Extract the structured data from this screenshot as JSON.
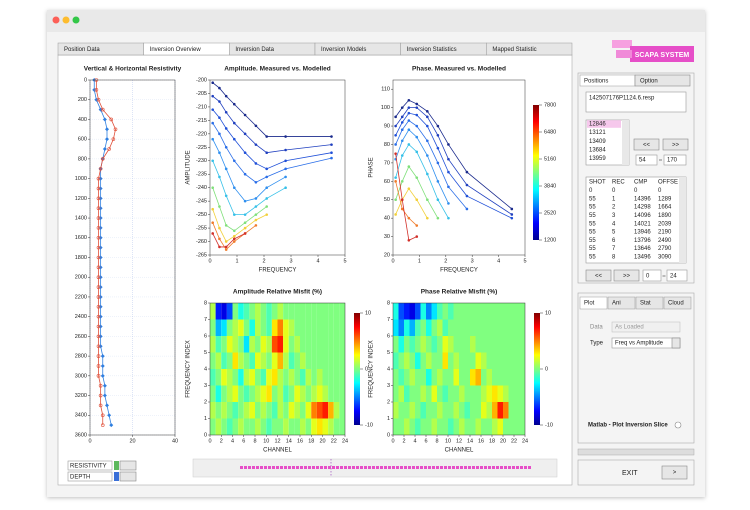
{
  "window": {
    "tabs": [
      "Position Data",
      "Inversion Overview",
      "Inversion Data",
      "Inversion Models",
      "Inversion Statistics",
      "Mapped Statistic"
    ]
  },
  "charts": [
    {
      "type": "profile",
      "title": "Vertical & Horizontal Resistivity",
      "grid": true,
      "y_inverted": true,
      "xlim": [
        0,
        40
      ],
      "ylim": [
        0,
        3600
      ],
      "xticks": [
        0,
        20,
        40
      ],
      "yticks": [
        0,
        200,
        400,
        600,
        800,
        1000,
        1200,
        1400,
        1600,
        1800,
        2000,
        2200,
        2400,
        2600,
        2800,
        3000,
        3200,
        3400,
        3600
      ],
      "y": [
        0,
        100,
        200,
        300,
        400,
        500,
        600,
        700,
        800,
        900,
        1000,
        1100,
        1200,
        1300,
        1400,
        1500,
        1600,
        1700,
        1800,
        1900,
        2000,
        2100,
        2200,
        2300,
        2400,
        2500,
        2600,
        2700,
        2800,
        2900,
        3000,
        3100,
        3200,
        3300,
        3400,
        3500
      ],
      "series": [
        {
          "color": "#2f7fe0",
          "values": [
            2,
            2,
            3,
            5,
            7,
            8,
            8,
            7,
            6,
            5,
            5,
            5,
            5,
            5,
            5,
            5,
            5,
            5,
            5,
            5,
            5,
            5,
            5,
            5,
            5,
            5,
            5,
            5,
            6,
            6,
            6,
            7,
            7,
            8,
            9,
            10
          ]
        },
        {
          "color": "#e0503a",
          "values": [
            3,
            3,
            4,
            6,
            10,
            12,
            11,
            9,
            6,
            5,
            4,
            4,
            4,
            4,
            4,
            4,
            4,
            4,
            4,
            4,
            4,
            4,
            4,
            4,
            4,
            4,
            4,
            4,
            4,
            4,
            4,
            5,
            5,
            5,
            6,
            6
          ]
        }
      ]
    },
    {
      "type": "line",
      "title": "Amplitude. Measured vs. Modelled",
      "x_label": "FREQUENCY",
      "y_label": "AMPLITUDE",
      "grid": false,
      "xlim": [
        0,
        5
      ],
      "ylim": [
        -265,
        -200
      ],
      "xticks": [
        0,
        1,
        2,
        3,
        4,
        5
      ],
      "yticks": [
        -265,
        -260,
        -255,
        -250,
        -245,
        -240,
        -235,
        -230,
        -225,
        -220,
        -215,
        -210,
        -205,
        -200
      ],
      "x": [
        0.1,
        0.35,
        0.6,
        0.9,
        1.3,
        1.7,
        2.1,
        2.8,
        4.5
      ],
      "series": [
        {
          "color": "#1a2a8c",
          "values": [
            -201,
            -203,
            -206,
            -209,
            -213,
            -217,
            -221,
            -221,
            -221
          ]
        },
        {
          "color": "#1f3fbf",
          "values": [
            -206,
            -208,
            -212,
            -216,
            -220,
            -224,
            -227,
            -226,
            -224
          ]
        },
        {
          "color": "#2050d8",
          "values": [
            -211,
            -214,
            -218,
            -222,
            -227,
            -231,
            -233,
            -230,
            -227
          ]
        },
        {
          "color": "#2a6ee8",
          "values": [
            -216,
            -220,
            -225,
            -230,
            -235,
            -238,
            -236,
            -233,
            -229
          ]
        },
        {
          "color": "#2f8fef",
          "values": [
            -222,
            -227,
            -233,
            -240,
            -245,
            -244,
            -240,
            -236,
            null
          ]
        },
        {
          "color": "#35c0e8",
          "values": [
            -230,
            -236,
            -243,
            -250,
            -250,
            -247,
            -244,
            -240,
            null
          ]
        },
        {
          "color": "#7fe07a",
          "values": [
            -240,
            -247,
            -254,
            -256,
            -253,
            -250,
            -247,
            null,
            null
          ]
        },
        {
          "color": "#f2d03a",
          "values": [
            -248,
            -255,
            -260,
            -258,
            -255,
            -252,
            -250,
            null,
            null
          ]
        },
        {
          "color": "#f07b2a",
          "values": [
            -253,
            -259,
            -263,
            -260,
            -257,
            -254,
            null,
            null,
            null
          ]
        },
        {
          "color": "#d2302a",
          "values": [
            -257,
            -262,
            -262,
            -259,
            -257,
            null,
            null,
            null,
            null
          ]
        }
      ]
    },
    {
      "type": "line",
      "title": "Phase. Measured vs. Modelled",
      "x_label": "FREQUENCY",
      "y_label": "PHASE",
      "grid": false,
      "xlim": [
        0,
        5
      ],
      "ylim": [
        20,
        115
      ],
      "xticks": [
        0,
        1,
        2,
        3,
        4,
        5
      ],
      "yticks": [
        20,
        30,
        40,
        50,
        60,
        70,
        80,
        90,
        100,
        110
      ],
      "colorbar": {
        "lim": [
          1200,
          7800
        ],
        "ticks": [
          1200,
          2520,
          3840,
          5160,
          6480,
          7800
        ]
      },
      "x": [
        0.1,
        0.35,
        0.6,
        0.9,
        1.3,
        1.7,
        2.1,
        2.8,
        4.5
      ],
      "series": [
        {
          "color": "#1a2a8c",
          "values": [
            95,
            100,
            104,
            102,
            98,
            90,
            80,
            65,
            45
          ]
        },
        {
          "color": "#1f3fbf",
          "values": [
            90,
            95,
            100,
            100,
            95,
            85,
            72,
            58,
            42
          ]
        },
        {
          "color": "#2050d8",
          "values": [
            85,
            92,
            97,
            96,
            90,
            78,
            65,
            52,
            40
          ]
        },
        {
          "color": "#2a6ee8",
          "values": [
            80,
            88,
            93,
            90,
            82,
            70,
            57,
            45,
            null
          ]
        },
        {
          "color": "#2f8fef",
          "values": [
            72,
            82,
            88,
            84,
            74,
            60,
            48,
            null,
            null
          ]
        },
        {
          "color": "#35c0e8",
          "values": [
            62,
            74,
            80,
            76,
            64,
            50,
            40,
            null,
            null
          ]
        },
        {
          "color": "#7fe07a",
          "values": [
            50,
            60,
            68,
            62,
            50,
            40,
            null,
            null,
            null
          ]
        },
        {
          "color": "#f2d03a",
          "values": [
            42,
            50,
            56,
            50,
            40,
            null,
            null,
            null,
            null
          ]
        },
        {
          "color": "#f07b2a",
          "values": [
            60,
            45,
            40,
            36,
            null,
            null,
            null,
            null,
            null
          ]
        },
        {
          "color": "#d2302a",
          "values": [
            75,
            50,
            28,
            30,
            null,
            null,
            null,
            null,
            null
          ]
        }
      ]
    },
    {
      "type": "heatmap",
      "title": "Amplitude Relative Misfit (%)",
      "x_label": "CHANNEL",
      "y_label": "FREQUENCY INDEX",
      "xlim": [
        0,
        24
      ],
      "ylim": [
        0,
        8
      ],
      "xticks": [
        0,
        2,
        4,
        6,
        8,
        10,
        12,
        14,
        16,
        18,
        20,
        22,
        24
      ],
      "yticks": [
        0,
        1,
        2,
        3,
        4,
        5,
        6,
        7,
        8
      ],
      "colorbar": {
        "lim": [
          -10,
          10
        ],
        "ticks": [
          -10,
          0,
          10
        ]
      },
      "values": [
        [
          0,
          1,
          0,
          -1,
          0,
          1,
          0,
          0,
          1,
          0,
          -1,
          0,
          0,
          1,
          0,
          0,
          1,
          0,
          2,
          3,
          2,
          1,
          0,
          0
        ],
        [
          1,
          0,
          1,
          0,
          -1,
          0,
          1,
          2,
          0,
          1,
          0,
          -1,
          1,
          0,
          2,
          1,
          0,
          2,
          5,
          6,
          7,
          4,
          1,
          0
        ],
        [
          0,
          -2,
          0,
          1,
          2,
          0,
          -1,
          0,
          1,
          2,
          3,
          0,
          1,
          -1,
          0,
          2,
          1,
          0,
          1,
          2,
          1,
          0,
          0,
          0
        ],
        [
          -1,
          0,
          2,
          1,
          0,
          -2,
          1,
          2,
          0,
          -1,
          2,
          3,
          1,
          0,
          1,
          0,
          -1,
          1,
          0,
          1,
          0,
          0,
          0,
          0
        ],
        [
          0,
          1,
          -1,
          0,
          3,
          1,
          0,
          -1,
          2,
          1,
          0,
          2,
          4,
          1,
          -1,
          0,
          1,
          0,
          0,
          0,
          0,
          0,
          0,
          0
        ],
        [
          1,
          -1,
          0,
          2,
          1,
          0,
          -3,
          1,
          0,
          2,
          1,
          6,
          7,
          2,
          0,
          1,
          0,
          0,
          0,
          0,
          0,
          0,
          0,
          0
        ],
        [
          0,
          -4,
          -3,
          0,
          1,
          2,
          0,
          -2,
          1,
          0,
          -1,
          3,
          5,
          2,
          1,
          0,
          0,
          0,
          0,
          0,
          0,
          0,
          0,
          0
        ],
        [
          1,
          -7,
          -8,
          -6,
          0,
          -2,
          -1,
          0,
          1,
          0,
          -1,
          0,
          1,
          0,
          0,
          0,
          0,
          0,
          0,
          0,
          0,
          0,
          0,
          0
        ]
      ]
    },
    {
      "type": "heatmap",
      "title": "Phase Relative Misfit (%)",
      "x_label": "CHANNEL",
      "y_label": "FREQUENCY INDEX",
      "xlim": [
        0,
        24
      ],
      "ylim": [
        0,
        8
      ],
      "xticks": [
        0,
        2,
        4,
        6,
        8,
        10,
        12,
        14,
        16,
        18,
        20,
        22,
        24
      ],
      "yticks": [
        0,
        1,
        2,
        3,
        4,
        5,
        6,
        7,
        8
      ],
      "colorbar": {
        "lim": [
          -10,
          10
        ],
        "ticks": [
          -10,
          0,
          10
        ]
      },
      "values": [
        [
          0,
          0,
          1,
          0,
          -1,
          0,
          0,
          1,
          0,
          0,
          -1,
          0,
          1,
          0,
          0,
          1,
          0,
          0,
          1,
          2,
          0,
          0,
          0,
          0
        ],
        [
          1,
          0,
          0,
          1,
          0,
          -1,
          0,
          0,
          1,
          0,
          0,
          1,
          0,
          -1,
          0,
          0,
          2,
          1,
          4,
          7,
          5,
          0,
          0,
          0
        ],
        [
          0,
          1,
          -1,
          0,
          0,
          1,
          0,
          2,
          0,
          -1,
          0,
          0,
          1,
          0,
          0,
          0,
          1,
          2,
          3,
          2,
          1,
          0,
          0,
          0
        ],
        [
          0,
          -1,
          0,
          1,
          0,
          0,
          -2,
          0,
          1,
          0,
          0,
          2,
          0,
          0,
          3,
          4,
          0,
          1,
          0,
          0,
          0,
          0,
          0,
          0
        ],
        [
          -1,
          0,
          1,
          0,
          -2,
          0,
          1,
          0,
          0,
          3,
          0,
          1,
          0,
          0,
          0,
          2,
          1,
          0,
          0,
          0,
          0,
          0,
          0,
          0
        ],
        [
          0,
          -2,
          0,
          -1,
          0,
          1,
          0,
          -1,
          0,
          2,
          1,
          0,
          0,
          0,
          1,
          0,
          0,
          0,
          0,
          0,
          0,
          0,
          0,
          0
        ],
        [
          -3,
          -5,
          -2,
          -4,
          -1,
          0,
          -2,
          0,
          1,
          -1,
          0,
          0,
          0,
          0,
          0,
          0,
          0,
          0,
          0,
          0,
          0,
          0,
          0,
          0
        ],
        [
          -2,
          -6,
          -7,
          -8,
          -6,
          -2,
          -5,
          -3,
          -1,
          0,
          -1,
          0,
          0,
          0,
          0,
          0,
          0,
          0,
          0,
          0,
          0,
          0,
          0,
          0
        ]
      ]
    }
  ],
  "controls": {
    "labels": [
      "RESISTIVITY",
      "DEPTH"
    ]
  },
  "sidebar": {
    "logo": "SCAPA SYSTEM",
    "tabs": [
      "Positions",
      "Option"
    ],
    "file": "142507176P1124.6.resp",
    "list": [
      12846,
      13121,
      13409,
      13684,
      13959
    ],
    "list_nav": [
      "<<",
      ">>"
    ],
    "range": [
      54,
      170
    ],
    "table": {
      "columns": [
        "SHOT",
        "REC",
        "CMP",
        "OFFSE"
      ],
      "rows": [
        [
          0,
          0,
          0,
          0
        ],
        [
          55,
          1,
          14396,
          1289
        ],
        [
          55,
          2,
          14298,
          1664
        ],
        [
          55,
          3,
          14096,
          1890
        ],
        [
          55,
          4,
          14021,
          2039
        ],
        [
          55,
          5,
          13946,
          2190
        ],
        [
          55,
          6,
          13796,
          2490
        ],
        [
          55,
          7,
          13646,
          2790
        ],
        [
          55,
          8,
          13496,
          3090
        ]
      ]
    },
    "table_nav": [
      "<<",
      ">>"
    ],
    "table_range": [
      0,
      24
    ],
    "plot_tabs": [
      "Plot",
      "Ani",
      "Stat",
      "Cloud"
    ],
    "data_label": "Data",
    "data_value": "As Loaded",
    "type_label": "Type",
    "type_value": "Freq vs Amplitude",
    "matlab": "Matlab - Plot Inversion Slice",
    "exit": "EXIT",
    "exit_button": ">"
  }
}
